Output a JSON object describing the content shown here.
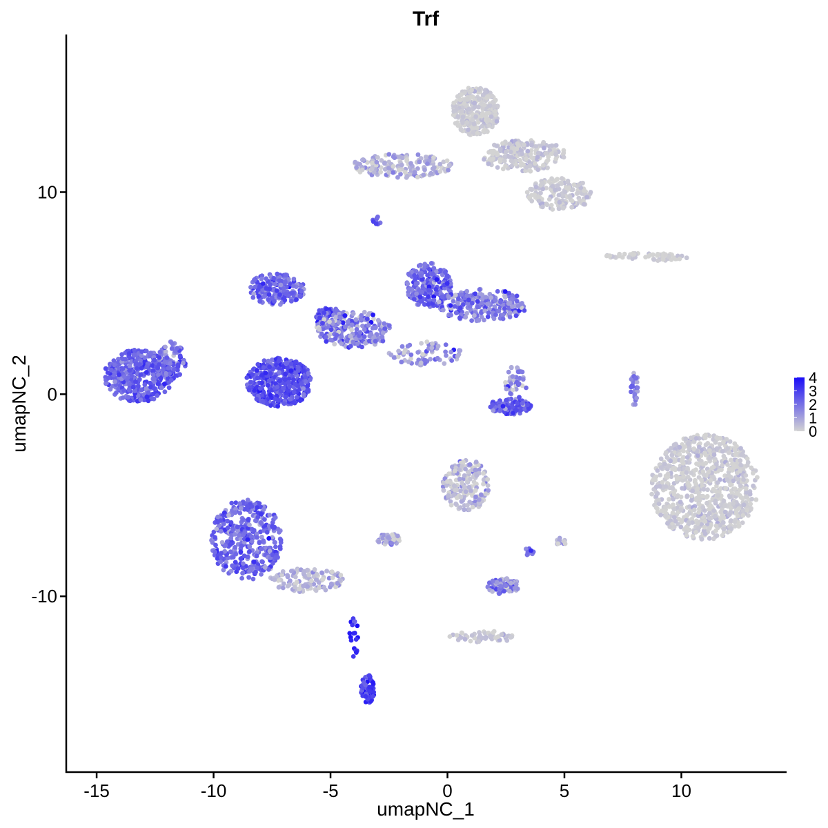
{
  "chart_data": {
    "type": "scatter",
    "title": "Trf",
    "xlabel": "umapNC_1",
    "ylabel": "umapNC_2",
    "xlim": [
      -16.3,
      14.5
    ],
    "ylim": [
      -18.7,
      17.8
    ],
    "x_ticks": [
      -15,
      -10,
      -5,
      0,
      5,
      10
    ],
    "x_tick_labels": [
      "-15",
      "-10",
      "-5",
      "0",
      "5",
      "10"
    ],
    "y_ticks": [
      -10,
      0,
      10
    ],
    "y_tick_labels": [
      "-10",
      "0",
      "10"
    ],
    "grid": false,
    "legend": {
      "placement": "right",
      "type": "colorbar",
      "range": [
        0,
        4
      ],
      "tick_labels": [
        "4",
        "3",
        "2",
        "1",
        "0"
      ],
      "low_color": "#D3D3D3",
      "high_color": "#1A0DF7"
    },
    "clusters": [
      {
        "cx": -13.2,
        "cy": 0.9,
        "rx": 1.5,
        "ry": 1.3,
        "n": 380,
        "expr": 2.3,
        "spread": 0.5
      },
      {
        "cx": -11.8,
        "cy": 1.6,
        "rx": 0.6,
        "ry": 1.0,
        "n": 70,
        "expr": 2.0,
        "spread": 0.6
      },
      {
        "cx": -7.2,
        "cy": 0.6,
        "rx": 1.4,
        "ry": 1.2,
        "n": 420,
        "expr": 2.6,
        "spread": 0.5
      },
      {
        "cx": -7.3,
        "cy": 5.2,
        "rx": 1.2,
        "ry": 0.8,
        "n": 170,
        "expr": 2.2,
        "spread": 0.6
      },
      {
        "cx": -5.1,
        "cy": 3.8,
        "rx": 0.6,
        "ry": 0.5,
        "n": 90,
        "expr": 2.5,
        "spread": 0.6
      },
      {
        "cx": -4.0,
        "cy": 3.2,
        "rx": 1.6,
        "ry": 0.9,
        "n": 220,
        "expr": 1.6,
        "spread": 0.9
      },
      {
        "cx": -0.8,
        "cy": 5.4,
        "rx": 1.0,
        "ry": 1.1,
        "n": 220,
        "expr": 2.2,
        "spread": 0.6
      },
      {
        "cx": 1.5,
        "cy": 4.4,
        "rx": 1.9,
        "ry": 0.8,
        "n": 220,
        "expr": 1.8,
        "spread": 0.7
      },
      {
        "cx": 2.7,
        "cy": -0.6,
        "rx": 0.9,
        "ry": 0.4,
        "n": 110,
        "expr": 2.4,
        "spread": 0.6
      },
      {
        "cx": 2.9,
        "cy": 0.6,
        "rx": 0.5,
        "ry": 0.8,
        "n": 40,
        "expr": 1.2,
        "spread": 0.8
      },
      {
        "cx": -8.6,
        "cy": -7.2,
        "rx": 1.5,
        "ry": 2.0,
        "n": 380,
        "expr": 2.2,
        "spread": 0.6
      },
      {
        "cx": -6.0,
        "cy": -9.2,
        "rx": 1.6,
        "ry": 0.6,
        "n": 120,
        "expr": 0.5,
        "spread": 0.5
      },
      {
        "cx": -3.4,
        "cy": -14.6,
        "rx": 0.3,
        "ry": 0.7,
        "n": 60,
        "expr": 3.0,
        "spread": 0.5
      },
      {
        "cx": -4.0,
        "cy": -12.0,
        "rx": 0.2,
        "ry": 1.0,
        "n": 18,
        "expr": 3.4,
        "spread": 0.5
      },
      {
        "cx": 11.0,
        "cy": -4.6,
        "rx": 2.3,
        "ry": 2.6,
        "n": 800,
        "expr": 0.1,
        "spread": 0.25
      },
      {
        "cx": 1.2,
        "cy": 14.0,
        "rx": 1.0,
        "ry": 1.2,
        "n": 300,
        "expr": 0.1,
        "spread": 0.25
      },
      {
        "cx": 3.3,
        "cy": 11.8,
        "rx": 1.8,
        "ry": 0.8,
        "n": 220,
        "expr": 0.15,
        "spread": 0.3
      },
      {
        "cx": 4.8,
        "cy": 9.9,
        "rx": 1.4,
        "ry": 0.8,
        "n": 160,
        "expr": 0.1,
        "spread": 0.25
      },
      {
        "cx": -2.0,
        "cy": 11.3,
        "rx": 2.2,
        "ry": 0.6,
        "n": 160,
        "expr": 0.6,
        "spread": 0.6
      },
      {
        "cx": 8.5,
        "cy": 6.8,
        "rx": 1.8,
        "ry": 0.2,
        "n": 60,
        "expr": 0.05,
        "spread": 0.2
      },
      {
        "cx": 0.8,
        "cy": -4.5,
        "rx": 1.0,
        "ry": 1.3,
        "n": 180,
        "expr": 0.5,
        "spread": 0.6
      },
      {
        "cx": -2.5,
        "cy": -7.2,
        "rx": 0.5,
        "ry": 0.3,
        "n": 40,
        "expr": 0.7,
        "spread": 0.6
      },
      {
        "cx": 2.4,
        "cy": -9.5,
        "rx": 0.7,
        "ry": 0.4,
        "n": 70,
        "expr": 1.5,
        "spread": 0.7
      },
      {
        "cx": 1.5,
        "cy": -12.0,
        "rx": 1.4,
        "ry": 0.3,
        "n": 55,
        "expr": 0.2,
        "spread": 0.3
      },
      {
        "cx": -1.0,
        "cy": 2.0,
        "rx": 1.6,
        "ry": 0.6,
        "n": 70,
        "expr": 1.0,
        "spread": 0.8
      },
      {
        "cx": -3.0,
        "cy": 8.6,
        "rx": 0.2,
        "ry": 0.2,
        "n": 12,
        "expr": 2.5,
        "spread": 0.4
      },
      {
        "cx": 8.0,
        "cy": 0.3,
        "rx": 0.2,
        "ry": 0.9,
        "n": 25,
        "expr": 1.6,
        "spread": 0.6
      },
      {
        "cx": 4.9,
        "cy": -7.3,
        "rx": 0.3,
        "ry": 0.2,
        "n": 12,
        "expr": 0.6,
        "spread": 0.6
      },
      {
        "cx": 3.5,
        "cy": -7.8,
        "rx": 0.2,
        "ry": 0.2,
        "n": 8,
        "expr": 2.0,
        "spread": 0.5
      }
    ]
  }
}
